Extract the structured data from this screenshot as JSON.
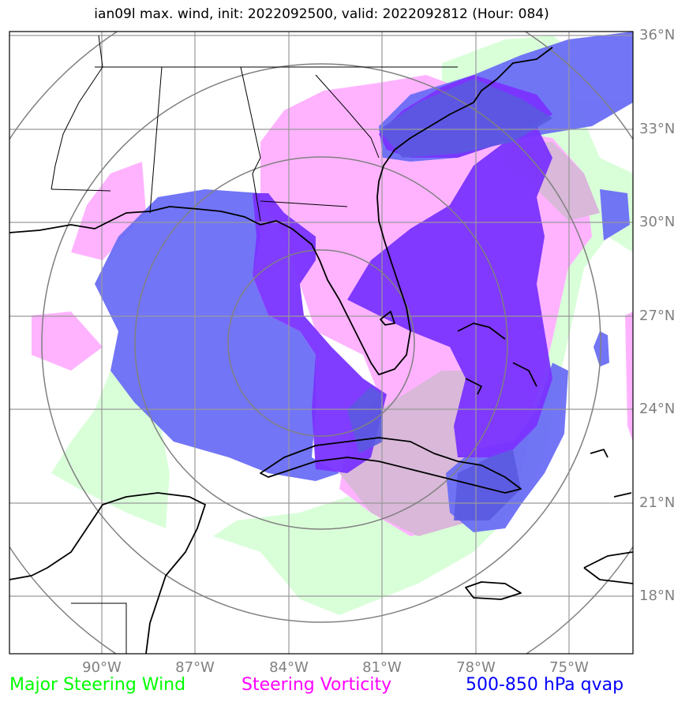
{
  "title": "ian09l max. wind, init: 2022092500, valid: 2022092812 (Hour: 084)",
  "lat_labels": [
    "36°N",
    "33°N",
    "30°N",
    "27°N",
    "24°N",
    "21°N",
    "18°N"
  ],
  "lon_labels": [
    "90°W",
    "87°W",
    "84°W",
    "81°W",
    "78°W",
    "75°W"
  ],
  "legend": {
    "wind": "Major Steering Wind",
    "vorticity": "Steering Vorticity",
    "qvap": "500-850 hPa qvap"
  },
  "colors": {
    "wind_fill": "#d9ffd9",
    "vorticity_fill": "#ffb3ff",
    "qvap_light": "#6a6ef5",
    "qvap_dark": "#7a33ff",
    "qvap_overlap": "#5a5ae0",
    "wind_text": "#00ff00",
    "vorticity_text": "#ff00ff",
    "qvap_text": "#0000ff",
    "grid": "#999999",
    "coast": "#000000"
  }
}
